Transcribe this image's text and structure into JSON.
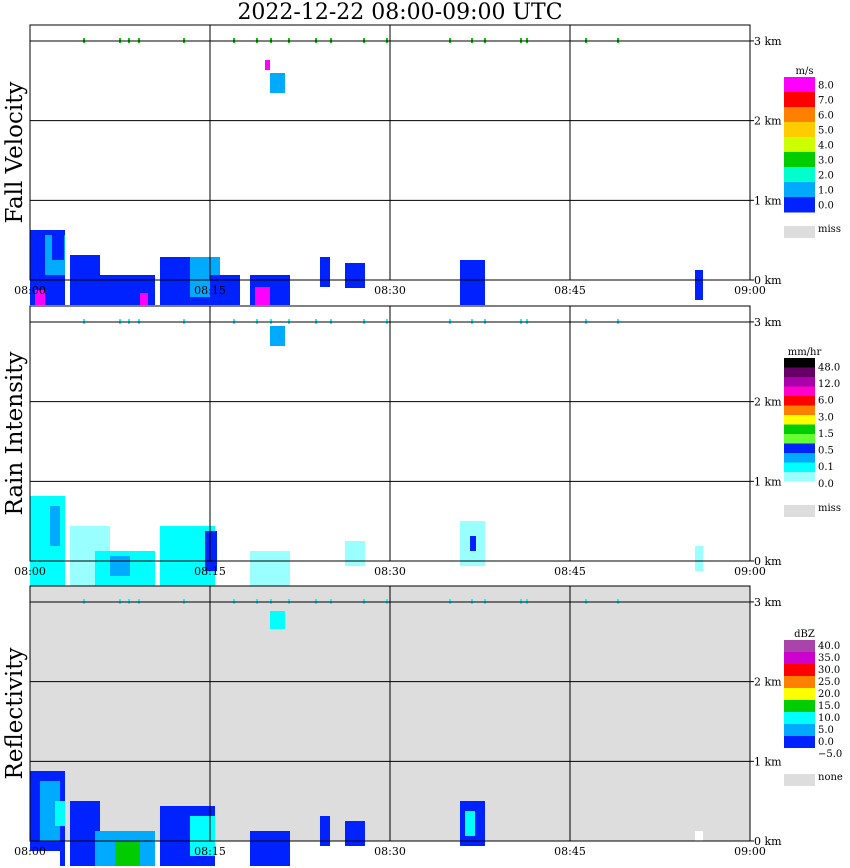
{
  "title": "2022-12-22   08:00-09:00 UTC",
  "chart_data": [
    {
      "type": "heatmap",
      "ylabel": "Fall Velocity",
      "x_ticks": [
        "08:00",
        "08:15",
        "08:30",
        "08:45",
        "09:00"
      ],
      "y_ticks": [
        "0 km",
        "1 km",
        "2 km",
        "3 km"
      ],
      "colorbar": {
        "unit": "m/s",
        "labels": [
          "8.0",
          "7.0",
          "6.0",
          "5.0",
          "4.0",
          "3.0",
          "2.0",
          "1.0",
          "0.0"
        ],
        "colors": [
          "#ff00ff",
          "#ff0000",
          "#ff8000",
          "#ffcc00",
          "#ccff00",
          "#00cc00",
          "#00ffcc",
          "#00aaff",
          "#0022ff"
        ],
        "missing_label": "miss",
        "missing_color": "#dddddd"
      },
      "background": "#ffffff"
    },
    {
      "type": "heatmap",
      "ylabel": "Rain Intensity",
      "x_ticks": [
        "08:00",
        "08:15",
        "08:30",
        "08:45",
        "09:00"
      ],
      "y_ticks": [
        "0 km",
        "1 km",
        "2 km",
        "3 km"
      ],
      "colorbar": {
        "unit": "mm/hr",
        "labels": [
          "48.0",
          "12.0",
          "6.0",
          "3.0",
          "1.5",
          "0.5",
          "0.1",
          "0.0"
        ],
        "colors": [
          "#000000",
          "#660066",
          "#aa00aa",
          "#ff00cc",
          "#ff0000",
          "#ff8000",
          "#ffff00",
          "#00cc00",
          "#66ff33",
          "#0022ff",
          "#00aaff",
          "#00ffff",
          "#99ffff",
          "#ffffff"
        ],
        "missing_label": "miss",
        "missing_color": "#dddddd"
      },
      "background": "#ffffff"
    },
    {
      "type": "heatmap",
      "ylabel": "Reflectivity",
      "x_ticks": [
        "08:00",
        "08:15",
        "08:30",
        "08:45",
        "09:00"
      ],
      "y_ticks": [
        "0 km",
        "1 km",
        "2 km",
        "3 km"
      ],
      "colorbar": {
        "unit": "dBZ",
        "labels": [
          "40.0",
          "35.0",
          "30.0",
          "25.0",
          "20.0",
          "15.0",
          "10.0",
          "5.0",
          "0.0",
          "−5.0"
        ],
        "colors": [
          "#aa44aa",
          "#cc00cc",
          "#ff0000",
          "#ff8000",
          "#ffff00",
          "#00cc00",
          "#00ffff",
          "#00aaff",
          "#0022ff",
          "#ffffff"
        ],
        "missing_label": "none",
        "missing_color": "#dddddd"
      },
      "background": "#dddddd"
    }
  ]
}
